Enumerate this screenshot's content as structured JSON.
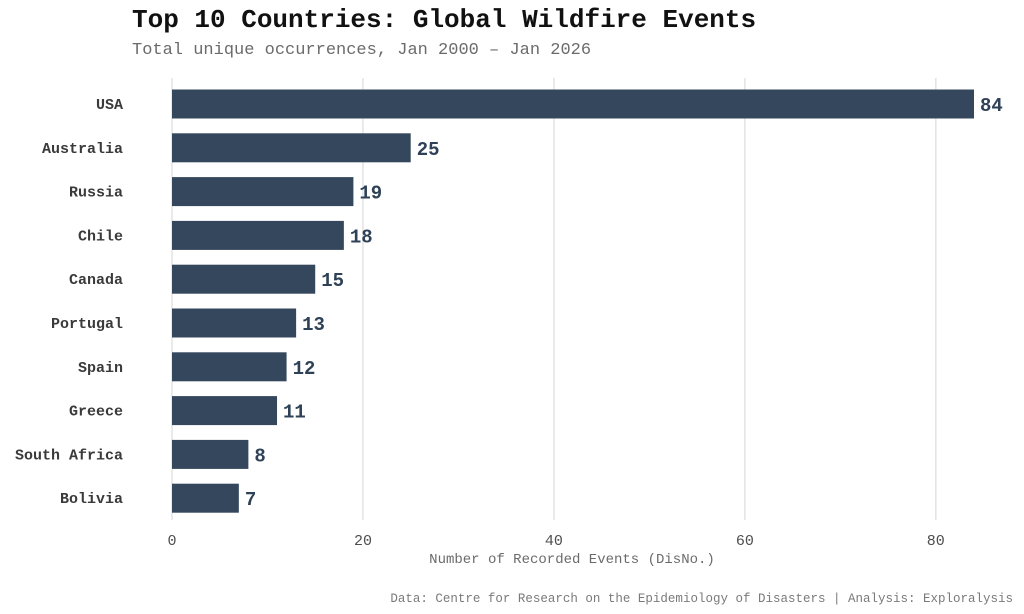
{
  "chart_data": {
    "type": "bar",
    "orientation": "horizontal",
    "title": "Top 10 Countries: Global Wildfire Events",
    "subtitle": "Total unique occurrences, Jan 2000 – Jan 2026",
    "xlabel": "Number of Recorded Events (DisNo.)",
    "ylabel": "",
    "categories": [
      "USA",
      "Australia",
      "Russia",
      "Chile",
      "Canada",
      "Portugal",
      "Spain",
      "Greece",
      "South Africa",
      "Bolivia"
    ],
    "values": [
      84,
      25,
      19,
      18,
      15,
      13,
      12,
      11,
      8,
      7
    ],
    "xlim": [
      0,
      84
    ],
    "xticks": [
      0,
      20,
      40,
      60,
      80
    ],
    "grid": "vertical",
    "legend": "none",
    "bar_color": "#34475d",
    "caption": "Data: Centre for Research on the Epidemiology of Disasters | Analysis: Exploralysis"
  }
}
